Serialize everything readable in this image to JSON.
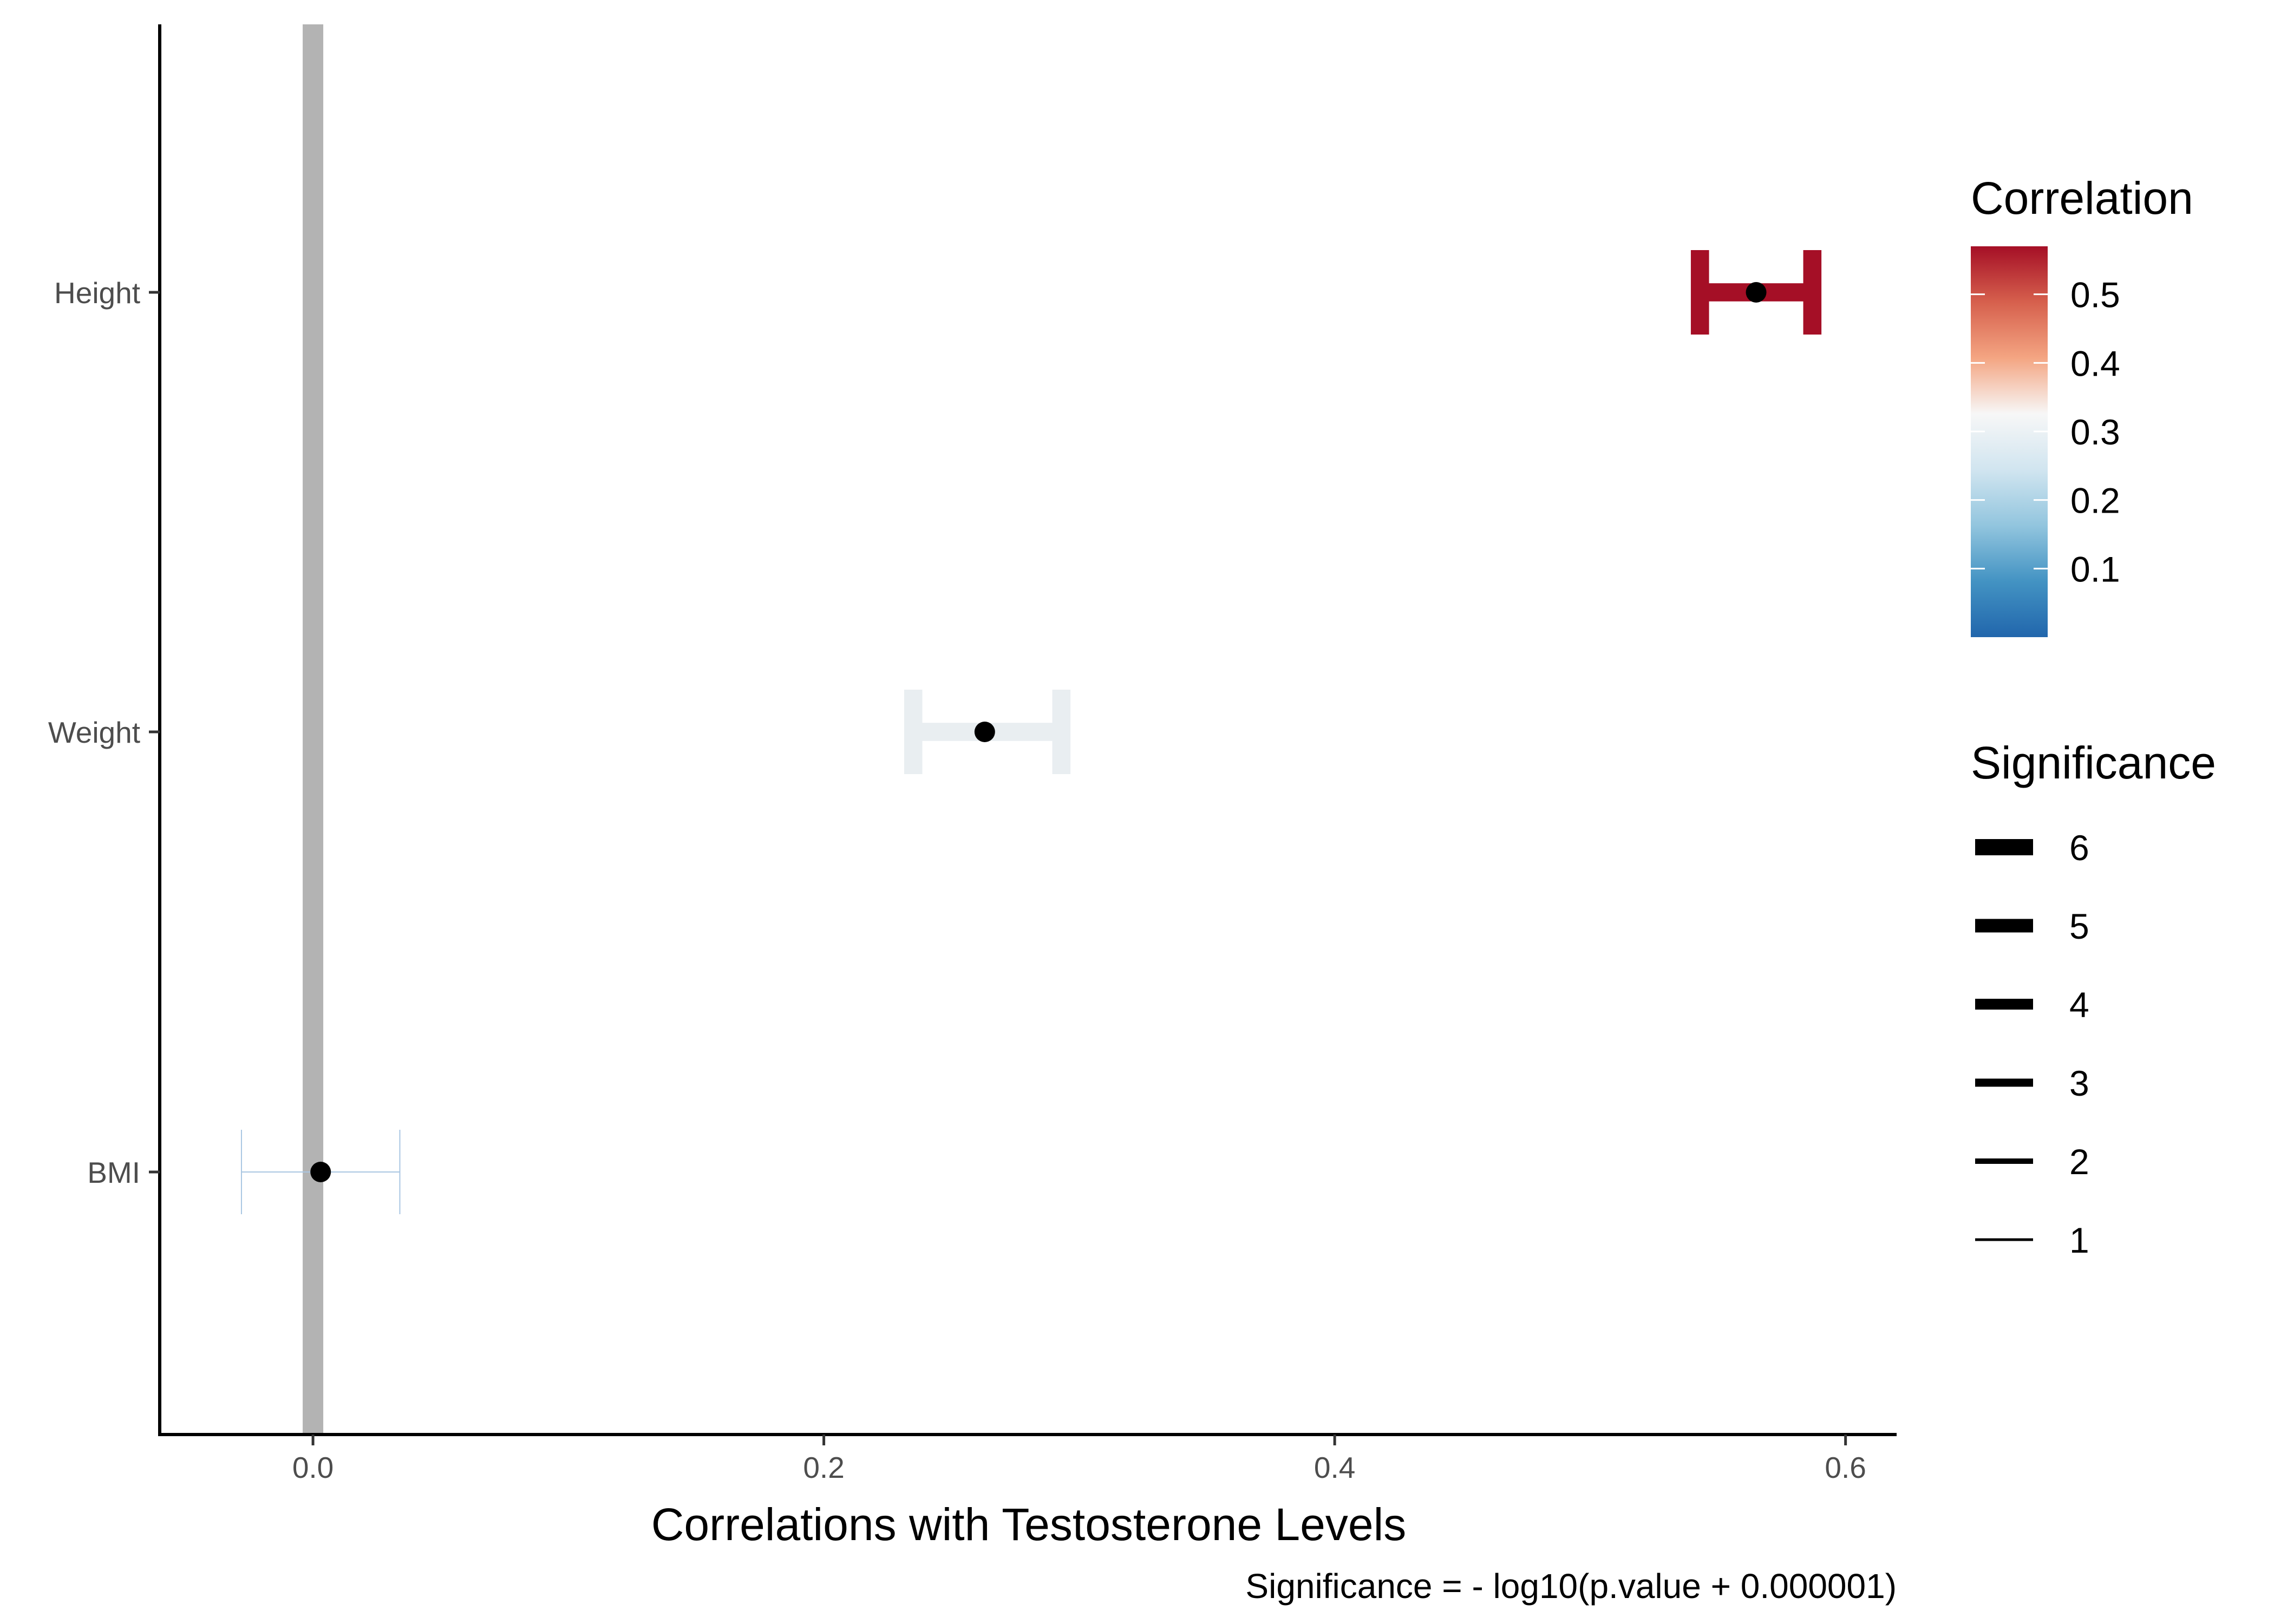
{
  "chart_data": {
    "type": "errorbar",
    "title": "",
    "xlabel": "Correlations with Testosterone Levels",
    "ylabel": "",
    "xlim": [
      -0.06,
      0.62
    ],
    "x_ticks": [
      0.0,
      0.2,
      0.4,
      0.6
    ],
    "x_tick_labels": [
      "0.0",
      "0.2",
      "0.4",
      "0.6"
    ],
    "categories": [
      "Height",
      "Weight",
      "BMI"
    ],
    "reference_line": {
      "x": 0.0,
      "color": "#b3b3b3"
    },
    "points": [
      {
        "label": "Height",
        "estimate": 0.565,
        "lower": 0.543,
        "upper": 0.587,
        "significance": 6,
        "color": "#a50f26"
      },
      {
        "label": "Weight",
        "estimate": 0.263,
        "lower": 0.235,
        "upper": 0.293,
        "significance": 6,
        "color": "#e9eef1"
      },
      {
        "label": "BMI",
        "estimate": 0.003,
        "lower": -0.028,
        "upper": 0.034,
        "significance": 0.1,
        "color": "#a9c6e2"
      }
    ],
    "legend": {
      "placement": "right",
      "color": {
        "title": "Correlation",
        "range": [
          0.0,
          0.57
        ],
        "tick_values": [
          0.5,
          0.4,
          0.3,
          0.2,
          0.1
        ],
        "tick_labels": [
          "0.5",
          "0.4",
          "0.3",
          "0.2",
          "0.1"
        ],
        "stops": [
          "#a50f26",
          "#d6604d",
          "#f4a582",
          "#f7f7f7",
          "#d1e5f0",
          "#92c5de",
          "#4393c3",
          "#2166ac"
        ]
      },
      "size": {
        "title": "Significance",
        "values": [
          6,
          5,
          4,
          3,
          2,
          1
        ],
        "labels": [
          "6",
          "5",
          "4",
          "3",
          "2",
          "1"
        ]
      }
    },
    "caption": "Significance = - log10(p.value + 0.000001)"
  }
}
